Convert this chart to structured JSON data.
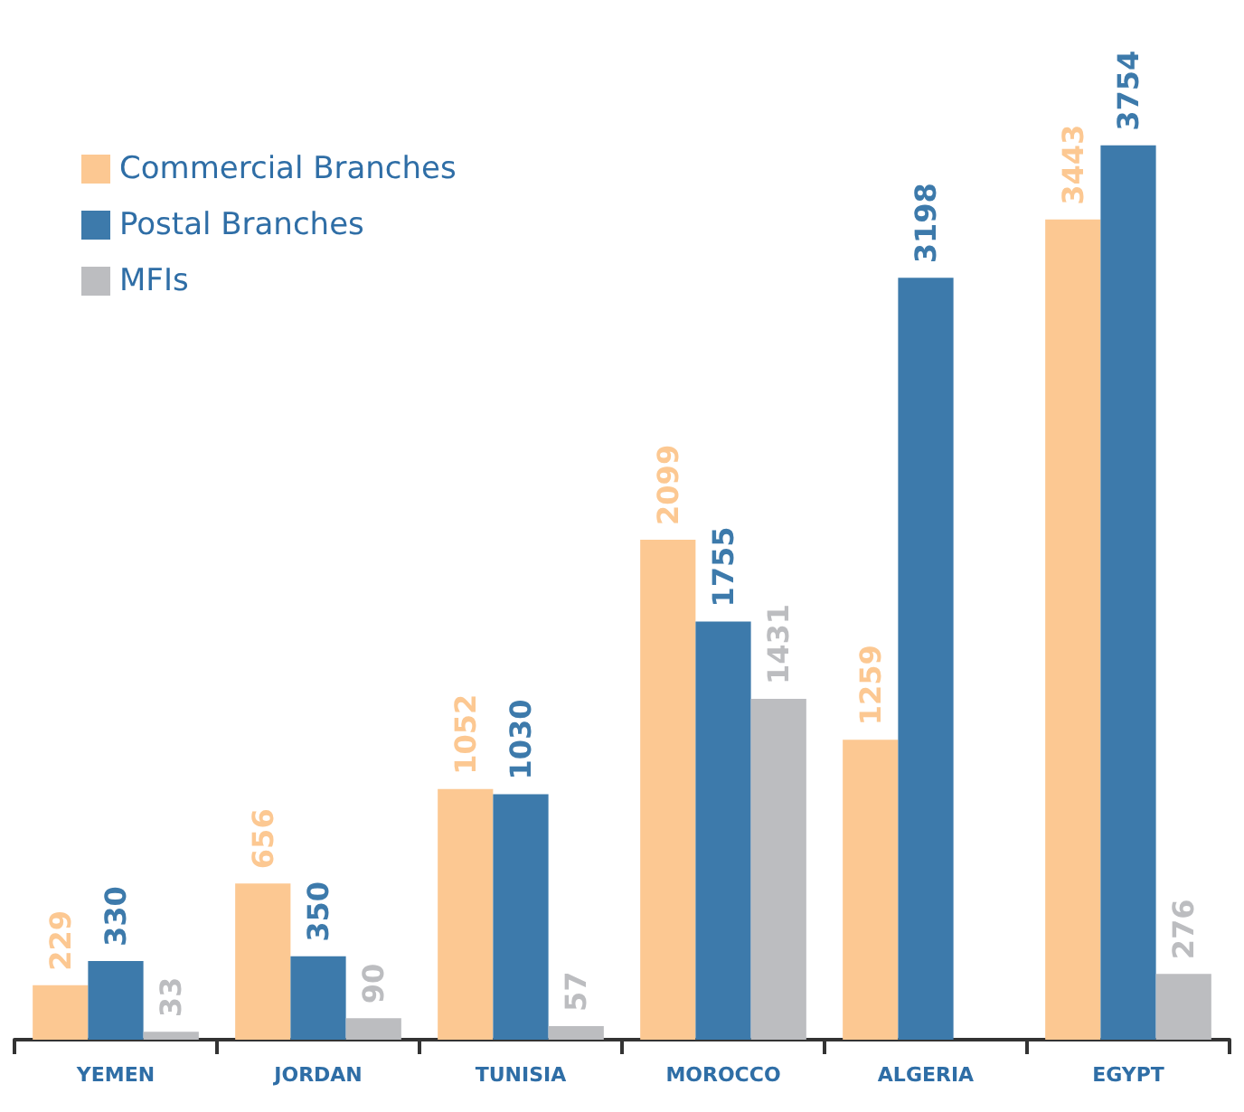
{
  "chart_data": {
    "type": "bar",
    "categories": [
      "YEMEN",
      "JORDAN",
      "TUNISIA",
      "MOROCCO",
      "ALGERIA",
      "EGYPT"
    ],
    "series": [
      {
        "name": "Commercial Branches",
        "color": "#fcc892",
        "values": [
          229,
          656,
          1052,
          2099,
          1259,
          3443
        ]
      },
      {
        "name": "Postal Branches",
        "color": "#3d7aab",
        "values": [
          330,
          350,
          1030,
          1755,
          3198,
          3754
        ]
      },
      {
        "name": "MFIs",
        "color": "#bcbdc0",
        "values": [
          33,
          90,
          57,
          1431,
          null,
          276
        ]
      }
    ],
    "data_labels": true,
    "legend": "top left",
    "tick_labels": "x"
  }
}
